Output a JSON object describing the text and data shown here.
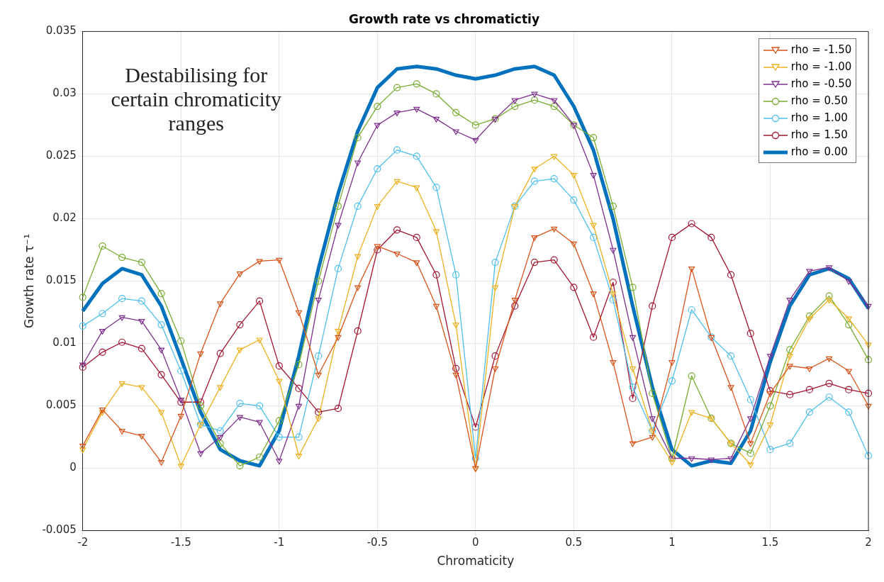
{
  "chart_data": {
    "type": "line",
    "title": "Growth rate vs chromatictiy",
    "xlabel": "Chromaticity",
    "ylabel": "Growth rate τ⁻¹",
    "annotations": [
      "Destabilising for certain chromaticity ranges"
    ],
    "x": [
      -2,
      -1.9,
      -1.8,
      -1.7,
      -1.6,
      -1.5,
      -1.4,
      -1.3,
      -1.2,
      -1.1,
      -1,
      -0.9,
      -0.8,
      -0.7,
      -0.6,
      -0.5,
      -0.4,
      -0.3,
      -0.2,
      -0.1,
      0,
      0.1,
      0.2,
      0.3,
      0.4,
      0.5,
      0.6,
      0.7,
      0.8,
      0.9,
      1,
      1.1,
      1.2,
      1.3,
      1.4,
      1.5,
      1.6,
      1.7,
      1.8,
      1.9,
      2
    ],
    "series": [
      {
        "name": "rho = -1.50",
        "color": "#d95319",
        "marker": "triangle",
        "values": [
          0.0018,
          0.0047,
          0.003,
          0.0026,
          0.0005,
          0.0042,
          0.0092,
          0.0132,
          0.0156,
          0.0166,
          0.0167,
          0.0125,
          0.0075,
          0.0105,
          0.0145,
          0.0178,
          0.0172,
          0.0165,
          0.013,
          0.0075,
          0,
          0.008,
          0.0135,
          0.0185,
          0.0192,
          0.018,
          0.014,
          0.0085,
          0.002,
          0.0025,
          0.0085,
          0.016,
          0.0105,
          0.0065,
          0.002,
          0.006,
          0.0082,
          0.008,
          0.0088,
          0.0078,
          0.005
        ]
      },
      {
        "name": "rho = -1.00",
        "color": "#edb120",
        "marker": "triangle",
        "values": [
          0.0015,
          0.0045,
          0.0068,
          0.0065,
          0.0045,
          0.0002,
          0.0035,
          0.0065,
          0.0095,
          0.0103,
          0.007,
          0.001,
          0.004,
          0.011,
          0.017,
          0.021,
          0.023,
          0.0225,
          0.019,
          0.0115,
          0,
          0.0145,
          0.021,
          0.024,
          0.025,
          0.0235,
          0.0195,
          0.014,
          0.008,
          0.003,
          0.0005,
          0.0045,
          0.004,
          0.002,
          0.0003,
          0.0035,
          0.009,
          0.012,
          0.0135,
          0.012,
          0.0099
        ]
      },
      {
        "name": "rho = -0.50",
        "color": "#7e2f8e",
        "marker": "triangle",
        "values": [
          0.0083,
          0.011,
          0.0121,
          0.0118,
          0.0095,
          0.0055,
          0.0012,
          0.0025,
          0.0041,
          0.0037,
          0.0006,
          0.005,
          0.0135,
          0.0195,
          0.0245,
          0.0275,
          0.0285,
          0.0288,
          0.028,
          0.027,
          0.0263,
          0.028,
          0.0295,
          0.03,
          0.0295,
          0.0275,
          0.0235,
          0.0175,
          0.0105,
          0.004,
          0.0008,
          0.0008,
          0.0007,
          0.0008,
          0.004,
          0.009,
          0.0135,
          0.0158,
          0.0161,
          0.015,
          0.013
        ]
      },
      {
        "name": "rho = 0.50",
        "color": "#77ac30",
        "marker": "circle",
        "values": [
          0.0137,
          0.0178,
          0.0169,
          0.0165,
          0.014,
          0.0102,
          0.005,
          0.002,
          0.0002,
          0.0009,
          0.0038,
          0.0083,
          0.015,
          0.021,
          0.0265,
          0.029,
          0.0305,
          0.0308,
          0.03,
          0.0285,
          0.0275,
          0.028,
          0.029,
          0.0295,
          0.029,
          0.0275,
          0.0265,
          0.021,
          0.0145,
          0.006,
          0.0008,
          0.0074,
          0.004,
          0.002,
          0.0012,
          0.005,
          0.0095,
          0.0122,
          0.0138,
          0.0115,
          0.0087
        ]
      },
      {
        "name": "rho = 1.00",
        "color": "#4dbeee",
        "marker": "circle",
        "values": [
          0.0114,
          0.0124,
          0.0136,
          0.0134,
          0.0115,
          0.0078,
          0.0035,
          0.003,
          0.0052,
          0.005,
          0.0025,
          0.0025,
          0.009,
          0.016,
          0.021,
          0.024,
          0.0255,
          0.025,
          0.0225,
          0.0155,
          0.0008,
          0.0165,
          0.021,
          0.023,
          0.0232,
          0.0215,
          0.0185,
          0.0135,
          0.0065,
          0.003,
          0.007,
          0.0127,
          0.0105,
          0.009,
          0.0055,
          0.0015,
          0.002,
          0.0045,
          0.0057,
          0.0045,
          0.001
        ]
      },
      {
        "name": "rho = 1.50",
        "color": "#a2142f",
        "marker": "circle",
        "values": [
          0.0081,
          0.0093,
          0.0101,
          0.0096,
          0.0075,
          0.0053,
          0.0053,
          0.0092,
          0.0115,
          0.0134,
          0.0082,
          0.0064,
          0.0045,
          0.0048,
          0.011,
          0.0175,
          0.0191,
          0.0185,
          0.0155,
          0.008,
          0.0033,
          0.009,
          0.013,
          0.0165,
          0.0167,
          0.0145,
          0.0105,
          0.0149,
          0.0056,
          0.013,
          0.0185,
          0.0196,
          0.0185,
          0.0155,
          0.0108,
          0.0062,
          0.0059,
          0.0063,
          0.0068,
          0.0063,
          0.006
        ]
      },
      {
        "name": "rho = 0.00",
        "color": "#0072bd",
        "marker": "none",
        "values": [
          0.0126,
          0.0148,
          0.016,
          0.0155,
          0.013,
          0.0088,
          0.0045,
          0.0015,
          0.0006,
          0.0002,
          0.003,
          0.009,
          0.016,
          0.022,
          0.027,
          0.0305,
          0.032,
          0.0322,
          0.032,
          0.0315,
          0.0312,
          0.0315,
          0.032,
          0.0322,
          0.0315,
          0.029,
          0.0255,
          0.02,
          0.013,
          0.0065,
          0.0015,
          0.0002,
          0.0006,
          0.0004,
          0.003,
          0.0085,
          0.013,
          0.0155,
          0.016,
          0.0152,
          0.0128
        ]
      }
    ],
    "xlim": [
      -2,
      2
    ],
    "xticks": [
      -2,
      -1.5,
      -1,
      -0.5,
      0,
      0.5,
      1,
      1.5,
      2
    ],
    "ylim": [
      -0.005,
      0.035
    ],
    "yticks": [
      -0.005,
      0,
      0.005,
      0.01,
      0.015,
      0.02,
      0.025,
      0.03,
      0.035
    ],
    "grid": true,
    "legend": "top right"
  }
}
